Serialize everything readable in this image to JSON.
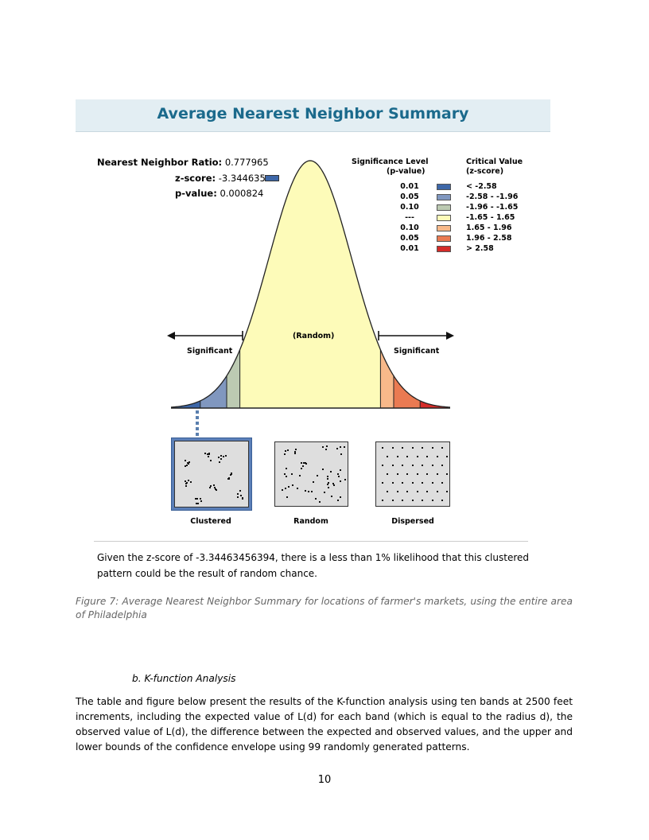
{
  "figure": {
    "title": "Average Nearest Neighbor Summary",
    "stats": {
      "ratio_label": "Nearest Neighbor Ratio:",
      "ratio_value": "0.777965",
      "z_label": "z-score:",
      "z_value": "-3.344635",
      "p_label": "p-value:",
      "p_value": "0.000824"
    },
    "legend": {
      "sig_header_1": "Significance Level",
      "sig_header_2": "(p-value)",
      "crit_header_1": "Critical Value",
      "crit_header_2": "(z-score)",
      "rows": [
        {
          "p": "0.01",
          "z": "< -2.58",
          "color": "#3d67a8"
        },
        {
          "p": "0.05",
          "z": "-2.58 - -1.96",
          "color": "#8097bf"
        },
        {
          "p": "0.10",
          "z": "-1.96 - -1.65",
          "color": "#bccab2"
        },
        {
          "p": "---",
          "z": "-1.65 - 1.65",
          "color": "#fdfbb9"
        },
        {
          "p": "0.10",
          "z": "1.65 - 1.96",
          "color": "#f8b98a"
        },
        {
          "p": "0.05",
          "z": "1.96 - 2.58",
          "color": "#ea7a52"
        },
        {
          "p": "0.01",
          "z": "> 2.58",
          "color": "#d52b28"
        }
      ]
    },
    "curve_labels": {
      "random": "(Random)",
      "significant_left": "Significant",
      "significant_right": "Significant"
    },
    "patterns": [
      {
        "label": "Clustered",
        "selected": true
      },
      {
        "label": "Random",
        "selected": false
      },
      {
        "label": "Dispersed",
        "selected": false
      }
    ],
    "explanation": "Given the z-score of -3.34463456394, there is a less than 1% likelihood that this clustered pattern could be the result of random chance."
  },
  "caption": "Figure 7: Average Nearest Neighbor Summary for locations of farmer's markets, using the entire area of Philadelphia",
  "section": {
    "heading": "b.   K-function Analysis",
    "paragraph": "The table and figure below present the results of the K-function analysis using ten bands at 2500 feet increments, including the expected value of L(d) for each band (which is equal to the radius d), the observed value of L(d), the difference between the expected and observed values, and the upper and lower bounds of the confidence envelope using 99 randomly generated patterns."
  },
  "page_number": "10"
}
